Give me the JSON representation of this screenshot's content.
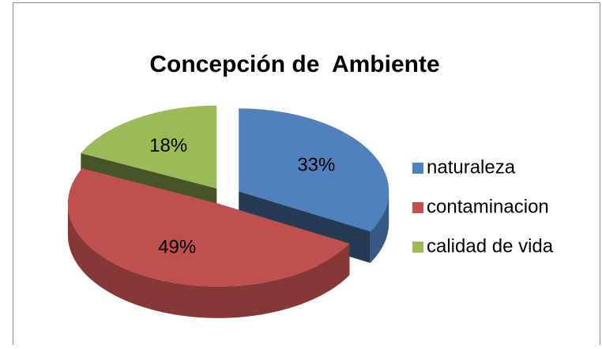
{
  "chart_data": {
    "type": "pie",
    "title": "Concepción de  Ambiente",
    "categories": [
      "naturaleza",
      "contaminacion",
      "calidad de vida"
    ],
    "values": [
      33,
      49,
      18
    ],
    "value_labels": [
      "33%",
      "49%",
      "18%"
    ],
    "colors": [
      "#4f81bd",
      "#c0504d",
      "#9bbb59"
    ],
    "legend": "right"
  }
}
